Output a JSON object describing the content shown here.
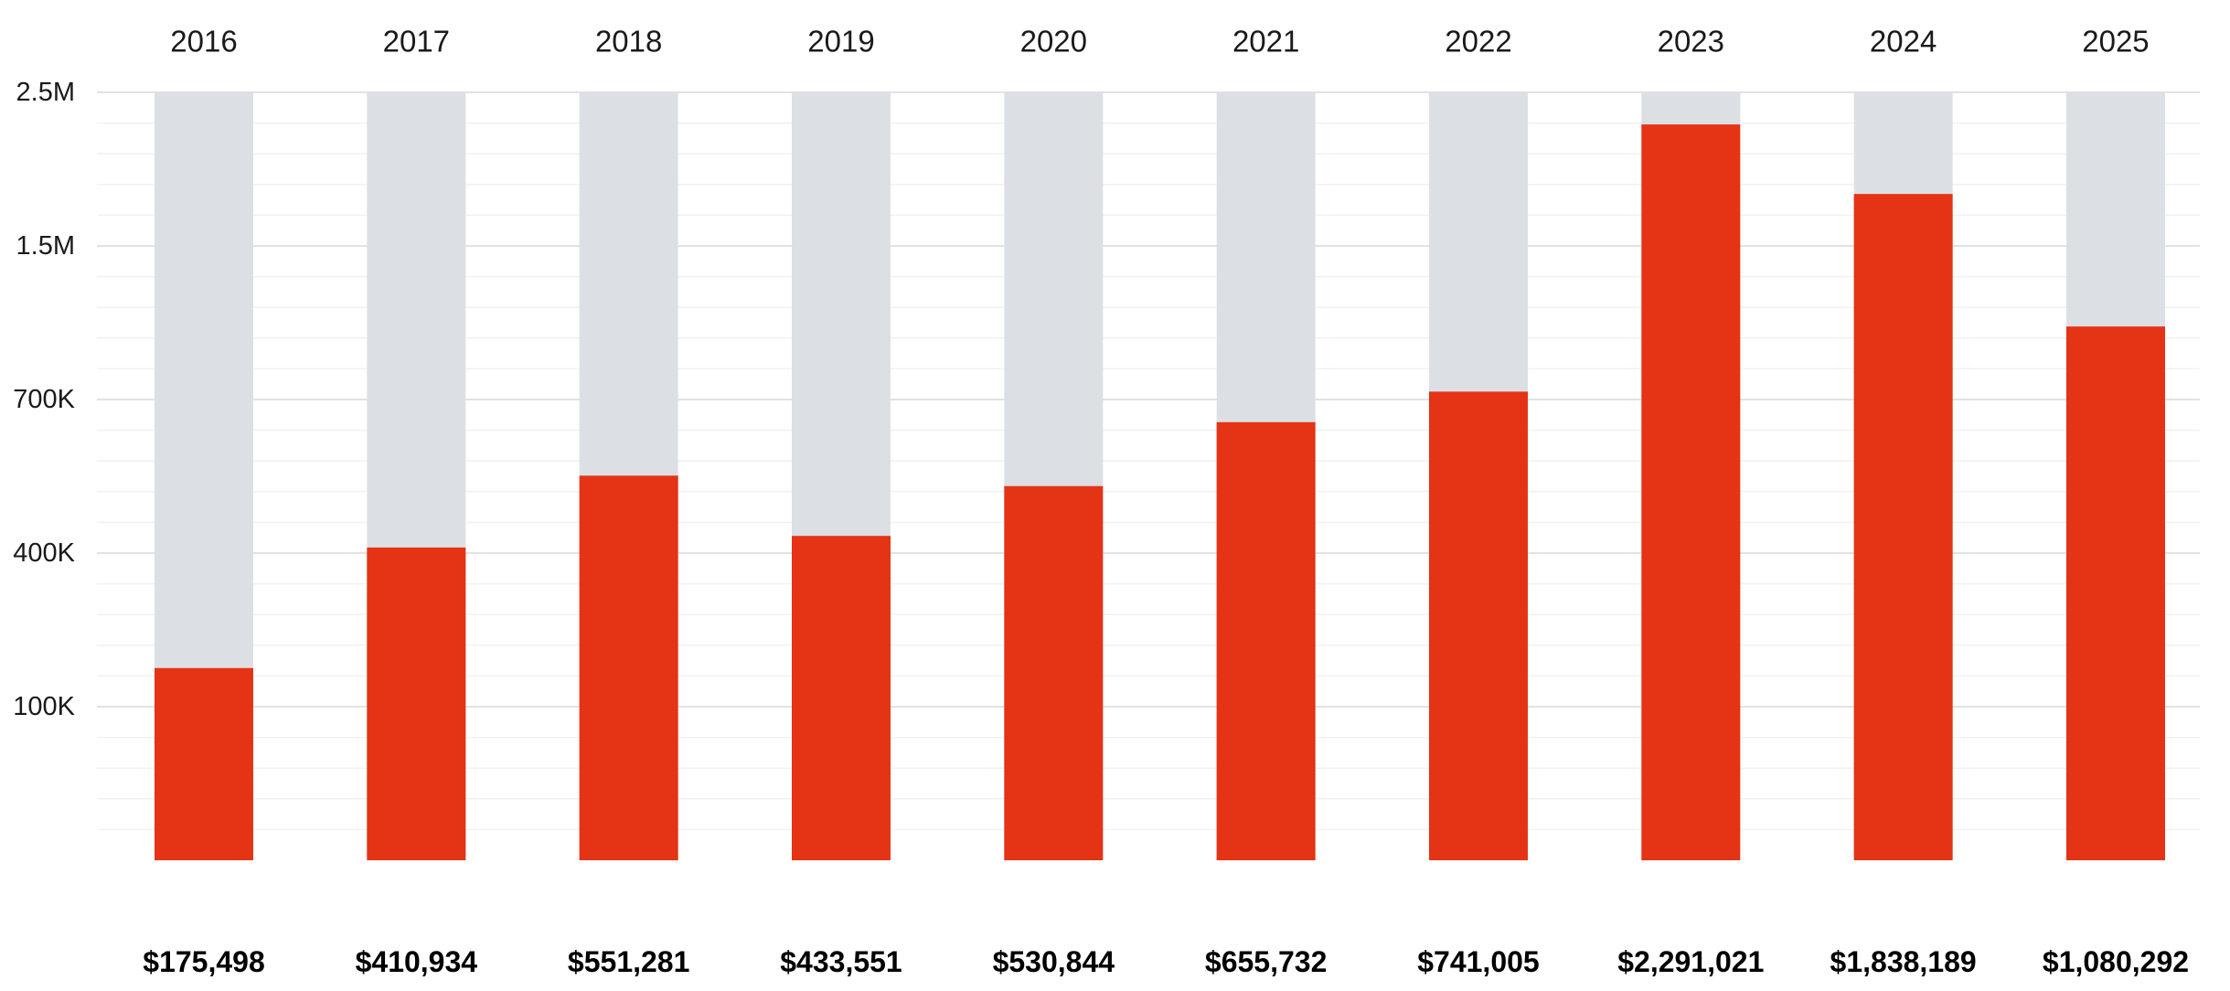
{
  "chart_data": {
    "type": "bar",
    "categories": [
      "2016",
      "2017",
      "2018",
      "2019",
      "2020",
      "2021",
      "2022",
      "2023",
      "2024",
      "2025"
    ],
    "values": [
      175498,
      410934,
      551281,
      433551,
      530844,
      655732,
      741005,
      2291021,
      1838189,
      1080292
    ],
    "value_labels": [
      "$175,498",
      "$410,934",
      "$551,281",
      "$433,551",
      "$530,844",
      "$655,732",
      "$741,005",
      "$2,291,021",
      "$1,838,189",
      "$1,080,292"
    ],
    "y_ticks": [
      {
        "label": "2.5M",
        "value": 2500000
      },
      {
        "label": "1.5M",
        "value": 1500000
      },
      {
        "label": "700K",
        "value": 700000
      },
      {
        "label": "400K",
        "value": 400000
      },
      {
        "label": "100K",
        "value": 100000
      }
    ],
    "ylim": [
      0,
      2500000
    ],
    "scale": "piecewise-linear",
    "title": "",
    "xlabel": "",
    "ylabel": "",
    "grid": true,
    "legend": "none",
    "colors": {
      "bar": "#e43315",
      "bar_background": "#dce0e4",
      "gridline_major": "#e2e2e2",
      "gridline_minor": "#f1f1f1"
    }
  }
}
